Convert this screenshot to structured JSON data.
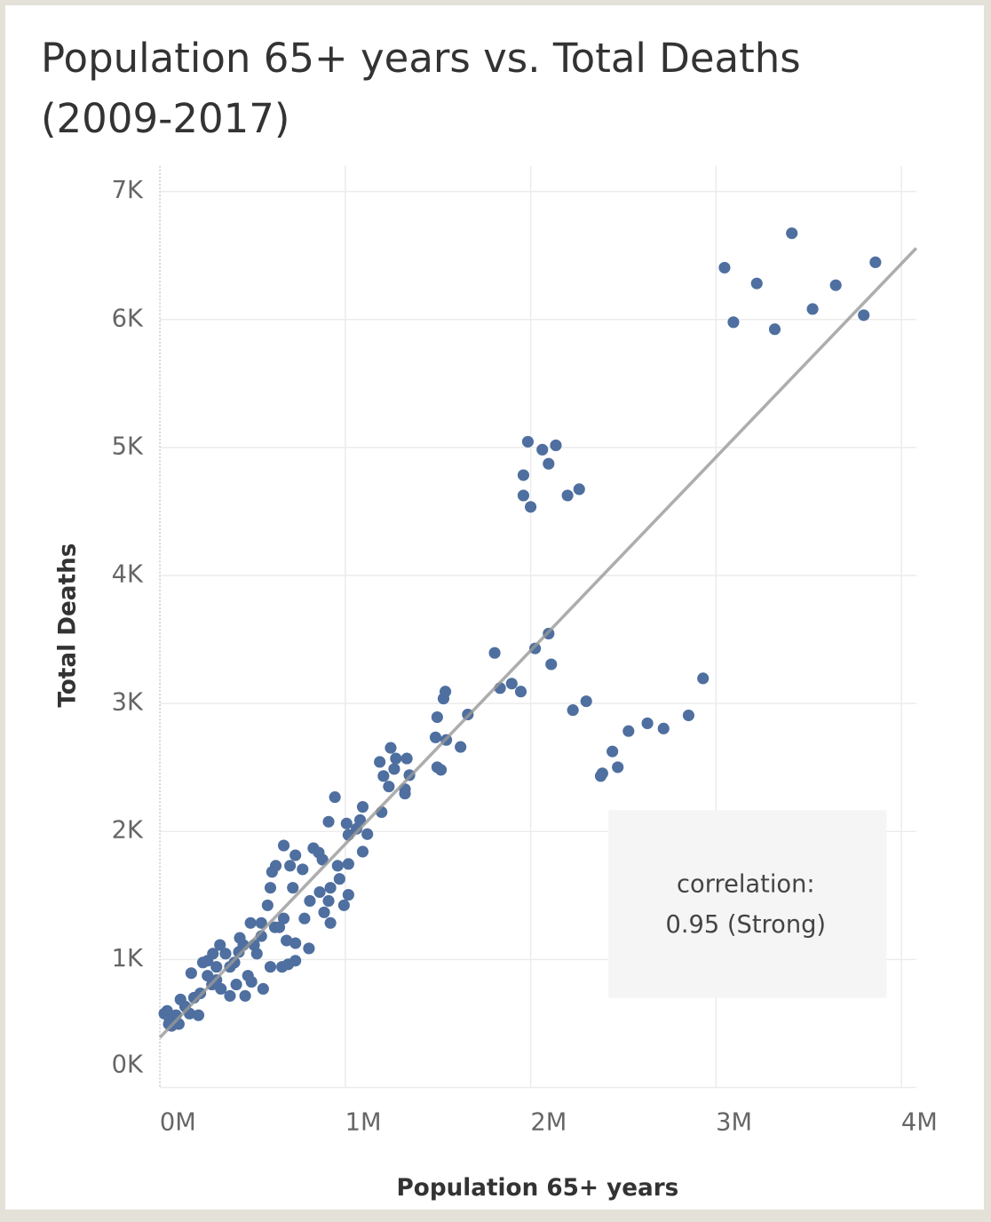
{
  "chart_data": {
    "type": "scatter",
    "title": "Population 65+ years vs. Total Deaths (2009-2017)",
    "x_label": "Population 65+ years",
    "y_label": "Total Deaths",
    "color": "#4e6f9f",
    "grid": true,
    "xlim": [
      0,
      4080000
    ],
    "ylim": [
      0,
      7200
    ],
    "xticks": [
      {
        "value": 0,
        "label": "0M"
      },
      {
        "value": 1000000,
        "label": "1M"
      },
      {
        "value": 2000000,
        "label": "2M"
      },
      {
        "value": 3000000,
        "label": "3M"
      },
      {
        "value": 4000000,
        "label": "4M"
      }
    ],
    "yticks": [
      {
        "value": 0,
        "label": "0K"
      },
      {
        "value": 1000,
        "label": "1K"
      },
      {
        "value": 2000,
        "label": "2K"
      },
      {
        "value": 3000,
        "label": "3K"
      },
      {
        "value": 4000,
        "label": "4K"
      },
      {
        "value": 5000,
        "label": "5K"
      },
      {
        "value": 6000,
        "label": "6K"
      },
      {
        "value": 7000,
        "label": "7K"
      }
    ],
    "trendline": {
      "color": "#999999",
      "x": [
        0,
        4080000
      ],
      "y": [
        390,
        6557
      ]
    },
    "annotation": [
      "correlation:",
      "0.95 (Strong)"
    ],
    "x": [
      3046000,
      3094000,
      3220000,
      3317000,
      3409000,
      3521000,
      3646000,
      3797000,
      3860000,
      1985000,
      2063000,
      2136000,
      2097000,
      1961000,
      1961000,
      2000000,
      2199000,
      2262000,
      2930000,
      2852000,
      2717000,
      2630000,
      2528000,
      2470000,
      2441000,
      2387000,
      2378000,
      2300000,
      2228000,
      2097000,
      2024000,
      2111000,
      1806000,
      1835000,
      1898000,
      1947000,
      1540000,
      1530000,
      1661000,
      1496000,
      1487000,
      1545000,
      1622000,
      1496000,
      1516000,
      1245000,
      1186000,
      1273000,
      1332000,
      1206000,
      1235000,
      1346000,
      1322000,
      1322000,
      1264000,
      1196000,
      944000,
      1094000,
      910000,
      1007000,
      1080000,
      1061000,
      1119000,
      1017000,
      1094000,
      1017000,
      959000,
      828000,
      857000,
      877000,
      668000,
      770000,
      969000,
      920000,
      1017000,
      910000,
      993000,
      886000,
      920000,
      809000,
      862000,
      731000,
      702000,
      605000,
      625000,
      596000,
      717000,
      804000,
      780000,
      668000,
      731000,
      581000,
      620000,
      547000,
      489000,
      523000,
      450000,
      402000,
      475000,
      412000,
      354000,
      305000,
      257000,
      329000,
      378000,
      460000,
      218000,
      169000,
      184000,
      136000,
      87000,
      53000,
      39000,
      111000,
      102000,
      63000,
      160000,
      281000,
      257000,
      324000,
      431000,
      547000,
      659000,
      596000,
      692000,
      731000,
      208000,
      24000,
      48000,
      232000,
      286000,
      378000,
      426000,
      494000,
      557000,
      644000,
      683000,
      508000,
      305000
    ],
    "y": [
      6405,
      5979,
      6282,
      5924,
      6674,
      6082,
      6268,
      6034,
      6447,
      5045,
      4983,
      5017,
      4873,
      4784,
      4625,
      4536,
      4625,
      4674,
      3196,
      2907,
      2804,
      2845,
      2784,
      2502,
      2625,
      2454,
      2433,
      3017,
      2948,
      3546,
      3430,
      3306,
      3395,
      3120,
      3155,
      3093,
      3093,
      3038,
      2914,
      2893,
      2735,
      2715,
      2660,
      2502,
      2481,
      2653,
      2543,
      2570,
      2570,
      2433,
      2351,
      2440,
      2330,
      2296,
      2488,
      2151,
      2268,
      2192,
      2076,
      2062,
      2089,
      2021,
      1979,
      1973,
      1842,
      1746,
      1732,
      1869,
      1835,
      1780,
      1890,
      1704,
      1629,
      1560,
      1505,
      1457,
      1423,
      1368,
      1285,
      1457,
      1526,
      1814,
      1732,
      1684,
      1732,
      1560,
      1560,
      1086,
      1320,
      1320,
      1127,
      1423,
      1251,
      1182,
      1285,
      1045,
      1113,
      976,
      873,
      804,
      1045,
      942,
      873,
      770,
      715,
      715,
      735,
      893,
      701,
      632,
      564,
      529,
      598,
      687,
      495,
      481,
      577,
      804,
      990,
      1113,
      1168,
      1285,
      942,
      942,
      962,
      990,
      564,
      577,
      495,
      976,
      1045,
      942,
      1058,
      825,
      770,
      1251,
      1148,
      1113,
      839
    ]
  }
}
